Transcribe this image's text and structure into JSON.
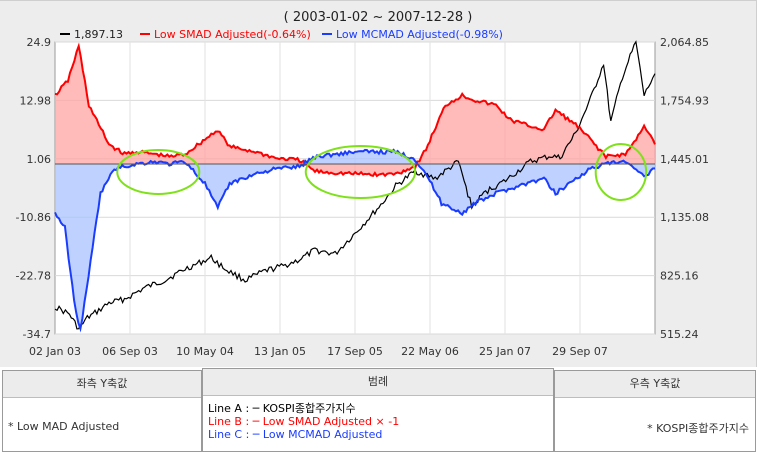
{
  "chart_data": {
    "type": "area",
    "title": "( 2003-01-02 ~ 2007-12-28 )",
    "x_range": [
      "2003-01-02",
      "2007-12-28"
    ],
    "x_ticks": [
      "02 Jan 03",
      "06 Sep 03",
      "10 May 04",
      "13 Jan 05",
      "17 Sep 05",
      "22 May 06",
      "25 Jan 07",
      "29 Sep 07"
    ],
    "left_axis": {
      "ticks": [
        "24.9",
        "12.98",
        "1.06",
        "-10.86",
        "-22.78",
        "-34.7"
      ],
      "ylim": [
        -34.7,
        24.9
      ]
    },
    "right_axis": {
      "ticks": [
        "2,064.85",
        "1,754.93",
        "1,445.01",
        "1,135.08",
        "825.16",
        "515.24"
      ],
      "ylim": [
        515.24,
        2064.85
      ]
    },
    "grid": true,
    "legend_position": "top",
    "series": [
      {
        "name": "KOSPI종합주가지수",
        "legend_text": "1,897.13",
        "axis": "right",
        "color": "#000000",
        "points": [
          [
            "2003-01-02",
            660
          ],
          [
            "2003-02-15",
            620
          ],
          [
            "2003-03-15",
            540
          ],
          [
            "2003-04-10",
            600
          ],
          [
            "2003-05-15",
            640
          ],
          [
            "2003-06-15",
            680
          ],
          [
            "2003-08-01",
            700
          ],
          [
            "2003-10-01",
            760
          ],
          [
            "2003-12-01",
            800
          ],
          [
            "2004-02-01",
            860
          ],
          [
            "2004-04-20",
            920
          ],
          [
            "2004-06-01",
            860
          ],
          [
            "2004-08-01",
            800
          ],
          [
            "2004-10-01",
            850
          ],
          [
            "2004-12-01",
            880
          ],
          [
            "2005-01-13",
            910
          ],
          [
            "2005-03-01",
            960
          ],
          [
            "2005-05-01",
            940
          ],
          [
            "2005-07-01",
            1050
          ],
          [
            "2005-09-17",
            1200
          ],
          [
            "2005-11-01",
            1300
          ],
          [
            "2005-12-30",
            1380
          ],
          [
            "2006-03-01",
            1340
          ],
          [
            "2006-05-10",
            1430
          ],
          [
            "2006-06-20",
            1190
          ],
          [
            "2006-08-01",
            1270
          ],
          [
            "2006-10-01",
            1330
          ],
          [
            "2006-12-15",
            1430
          ],
          [
            "2007-02-15",
            1460
          ],
          [
            "2007-03-15",
            1450
          ],
          [
            "2007-05-01",
            1580
          ],
          [
            "2007-06-15",
            1760
          ],
          [
            "2007-07-25",
            1950
          ],
          [
            "2007-08-16",
            1640
          ],
          [
            "2007-09-20",
            1880
          ],
          [
            "2007-10-31",
            2064
          ],
          [
            "2007-11-25",
            1780
          ],
          [
            "2007-12-28",
            1897
          ]
        ]
      },
      {
        "name": "Low SMAD Adjusted",
        "legend_text": "Low SMAD Adjusted(-0.64%)",
        "axis": "left",
        "color": "#ff0000",
        "fill": "#ffa3a3",
        "points": [
          [
            "2003-01-02",
            14
          ],
          [
            "2003-02-10",
            17
          ],
          [
            "2003-03-15",
            24
          ],
          [
            "2003-04-15",
            12
          ],
          [
            "2003-05-15",
            8
          ],
          [
            "2003-06-15",
            4
          ],
          [
            "2003-08-01",
            2
          ],
          [
            "2003-09-06",
            2.5
          ],
          [
            "2003-11-01",
            2
          ],
          [
            "2003-12-15",
            1.5
          ],
          [
            "2004-02-01",
            2
          ],
          [
            "2004-04-01",
            5
          ],
          [
            "2004-05-10",
            7
          ],
          [
            "2004-06-15",
            3.5
          ],
          [
            "2004-09-01",
            2.5
          ],
          [
            "2004-11-01",
            1.2
          ],
          [
            "2005-01-13",
            0.8
          ],
          [
            "2005-03-01",
            -1.5
          ],
          [
            "2005-05-01",
            -1.8
          ],
          [
            "2005-07-01",
            -2
          ],
          [
            "2005-09-17",
            -2.2
          ],
          [
            "2005-11-01",
            -2
          ],
          [
            "2005-12-30",
            -0.5
          ],
          [
            "2006-02-01",
            3
          ],
          [
            "2006-04-01",
            12
          ],
          [
            "2006-05-22",
            14
          ],
          [
            "2006-07-01",
            13
          ],
          [
            "2006-09-01",
            12
          ],
          [
            "2006-10-15",
            9
          ],
          [
            "2006-12-01",
            8
          ],
          [
            "2007-01-25",
            7
          ],
          [
            "2007-03-01",
            11
          ],
          [
            "2007-05-01",
            8
          ],
          [
            "2007-06-15",
            5
          ],
          [
            "2007-08-01",
            1.5
          ],
          [
            "2007-09-29",
            2
          ],
          [
            "2007-11-01",
            5
          ],
          [
            "2007-11-25",
            8
          ],
          [
            "2007-12-28",
            4
          ]
        ]
      },
      {
        "name": "Low MCMAD Adjusted",
        "legend_text": "Low MCMAD Adjusted(-0.98%)",
        "axis": "left",
        "color": "#1a3cff",
        "fill": "#a9c3ff",
        "points": [
          [
            "2003-01-02",
            -10
          ],
          [
            "2003-02-01",
            -13
          ],
          [
            "2003-03-01",
            -28
          ],
          [
            "2003-03-20",
            -34
          ],
          [
            "2003-04-20",
            -20
          ],
          [
            "2003-05-20",
            -6
          ],
          [
            "2003-07-01",
            -1
          ],
          [
            "2003-09-06",
            0
          ],
          [
            "2003-11-01",
            0.5
          ],
          [
            "2003-12-15",
            0
          ],
          [
            "2004-02-01",
            0.5
          ],
          [
            "2004-04-01",
            -4
          ],
          [
            "2004-05-10",
            -9
          ],
          [
            "2004-06-15",
            -4
          ],
          [
            "2004-09-01",
            -2
          ],
          [
            "2004-11-01",
            -1
          ],
          [
            "2005-01-13",
            -0.5
          ],
          [
            "2005-03-01",
            1.5
          ],
          [
            "2005-05-01",
            2
          ],
          [
            "2005-07-01",
            2.5
          ],
          [
            "2005-09-17",
            2.5
          ],
          [
            "2005-11-01",
            2.5
          ],
          [
            "2005-12-30",
            1
          ],
          [
            "2006-02-01",
            -2
          ],
          [
            "2006-03-20",
            -8
          ],
          [
            "2006-05-22",
            -10
          ],
          [
            "2006-07-01",
            -8
          ],
          [
            "2006-09-01",
            -6
          ],
          [
            "2006-10-15",
            -5
          ],
          [
            "2006-12-01",
            -4
          ],
          [
            "2007-01-25",
            -3
          ],
          [
            "2007-03-01",
            -6
          ],
          [
            "2007-05-01",
            -3
          ],
          [
            "2007-06-15",
            -1
          ],
          [
            "2007-08-01",
            0
          ],
          [
            "2007-09-29",
            0.5
          ],
          [
            "2007-11-01",
            -1.5
          ],
          [
            "2007-11-25",
            -2.5
          ],
          [
            "2007-12-28",
            -0.9
          ]
        ]
      }
    ],
    "highlight_ranges": [
      [
        "2003-07-10",
        "2004-03-15"
      ],
      [
        "2005-02-01",
        "2005-12-30"
      ],
      [
        "2007-07-01",
        "2007-12-01"
      ]
    ]
  },
  "panels": {
    "left_title": "좌측 Y축값",
    "left_value": "* Low MAD Adjusted",
    "legend_title": "범례",
    "right_title": "우측 Y축값",
    "right_value": "* KOSPI종합주가지수",
    "legend_lines": [
      {
        "text": "Line A : ─ KOSPI종합주가지수",
        "color": "#000000"
      },
      {
        "text": "Line B : ─ Low SMAD Adjusted × -1",
        "color": "#ff0000"
      },
      {
        "text": "Line C : ─ Low MCMAD Adjusted",
        "color": "#1a3cff"
      }
    ]
  }
}
